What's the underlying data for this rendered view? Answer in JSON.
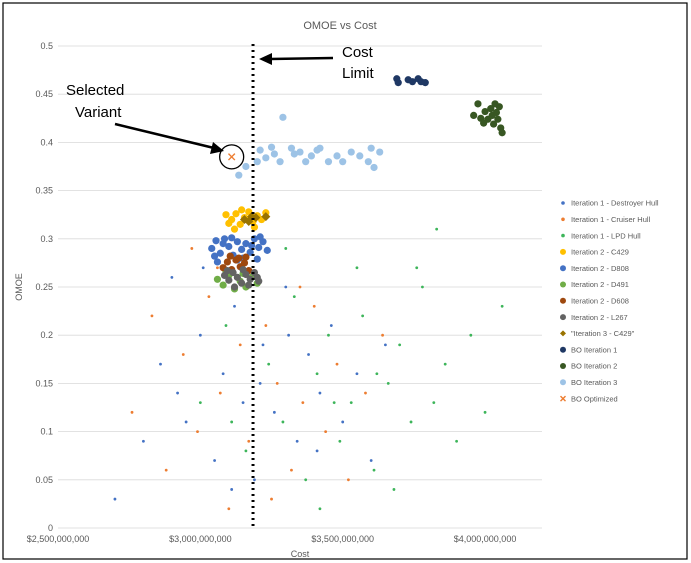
{
  "chart_data": {
    "type": "scatter",
    "title": "OMOE vs Cost",
    "xlabel": "Cost",
    "ylabel": "OMOE",
    "xlim": [
      2500000000,
      4200000000
    ],
    "ylim": [
      0,
      0.5
    ],
    "x_ticks": [
      2500000000,
      3000000000,
      3500000000,
      4000000000
    ],
    "x_tick_labels": [
      "$2,500,000,000",
      "$3,000,000,000",
      "$3,500,000,000",
      "$4,000,000,000"
    ],
    "y_ticks": [
      0,
      0.05,
      0.1,
      0.15,
      0.2,
      0.25,
      0.3,
      0.35,
      0.4,
      0.45,
      0.5
    ],
    "y_tick_labels": [
      "0",
      "0.05",
      "0.1",
      "0.15",
      "0.2",
      "0.25",
      "0.3",
      "0.35",
      "0.4",
      "0.45",
      "0.5"
    ],
    "grid": "horizontal",
    "legend_position": "right",
    "cost_limit_x": 3185000000,
    "series": [
      {
        "name": "Iteration 1 - Destroyer Hull",
        "color": "#4472C4",
        "marker": "dot",
        "points": [
          [
            2700000000,
            0.03
          ],
          [
            2800000000,
            0.09
          ],
          [
            2860000000,
            0.17
          ],
          [
            2900000000,
            0.26
          ],
          [
            2950000000,
            0.11
          ],
          [
            3000000000,
            0.2
          ],
          [
            3050000000,
            0.07
          ],
          [
            3080000000,
            0.16
          ],
          [
            3120000000,
            0.23
          ],
          [
            3150000000,
            0.13
          ],
          [
            3190000000,
            0.05
          ],
          [
            3220000000,
            0.19
          ],
          [
            3260000000,
            0.12
          ],
          [
            3300000000,
            0.25
          ],
          [
            3340000000,
            0.09
          ],
          [
            3380000000,
            0.18
          ],
          [
            3420000000,
            0.14
          ],
          [
            3460000000,
            0.21
          ],
          [
            3500000000,
            0.11
          ],
          [
            3550000000,
            0.16
          ],
          [
            3600000000,
            0.07
          ],
          [
            3650000000,
            0.19
          ],
          [
            2920000000,
            0.14
          ],
          [
            3010000000,
            0.27
          ],
          [
            3110000000,
            0.04
          ],
          [
            3210000000,
            0.15
          ],
          [
            3310000000,
            0.2
          ],
          [
            3410000000,
            0.08
          ]
        ]
      },
      {
        "name": "Iteration 1 - Cruiser Hull",
        "color": "#ED7D31",
        "marker": "dot",
        "points": [
          [
            2760000000,
            0.12
          ],
          [
            2830000000,
            0.22
          ],
          [
            2880000000,
            0.06
          ],
          [
            2940000000,
            0.18
          ],
          [
            2990000000,
            0.1
          ],
          [
            3030000000,
            0.24
          ],
          [
            3070000000,
            0.14
          ],
          [
            3100000000,
            0.02
          ],
          [
            3140000000,
            0.19
          ],
          [
            3170000000,
            0.09
          ],
          [
            3230000000,
            0.21
          ],
          [
            3270000000,
            0.15
          ],
          [
            3320000000,
            0.06
          ],
          [
            3360000000,
            0.13
          ],
          [
            3400000000,
            0.23
          ],
          [
            3440000000,
            0.1
          ],
          [
            3480000000,
            0.17
          ],
          [
            3520000000,
            0.05
          ],
          [
            3580000000,
            0.14
          ],
          [
            3640000000,
            0.2
          ],
          [
            2970000000,
            0.29
          ],
          [
            3060000000,
            0.27
          ],
          [
            3250000000,
            0.03
          ],
          [
            3350000000,
            0.25
          ]
        ]
      },
      {
        "name": "Iteration 1 - LPD Hull",
        "color": "#3DB55A",
        "marker": "dot",
        "points": [
          [
            3000000000,
            0.13
          ],
          [
            3090000000,
            0.21
          ],
          [
            3160000000,
            0.08
          ],
          [
            3240000000,
            0.17
          ],
          [
            3290000000,
            0.11
          ],
          [
            3330000000,
            0.24
          ],
          [
            3370000000,
            0.05
          ],
          [
            3410000000,
            0.16
          ],
          [
            3450000000,
            0.2
          ],
          [
            3490000000,
            0.09
          ],
          [
            3530000000,
            0.13
          ],
          [
            3570000000,
            0.22
          ],
          [
            3610000000,
            0.06
          ],
          [
            3660000000,
            0.15
          ],
          [
            3700000000,
            0.19
          ],
          [
            3740000000,
            0.11
          ],
          [
            3780000000,
            0.25
          ],
          [
            3820000000,
            0.13
          ],
          [
            3860000000,
            0.17
          ],
          [
            3900000000,
            0.09
          ],
          [
            3950000000,
            0.2
          ],
          [
            4000000000,
            0.12
          ],
          [
            4060000000,
            0.23
          ],
          [
            3300000000,
            0.29
          ],
          [
            3420000000,
            0.02
          ],
          [
            3550000000,
            0.27
          ],
          [
            3680000000,
            0.04
          ],
          [
            3760000000,
            0.27
          ],
          [
            3830000000,
            0.31
          ],
          [
            3200000000,
            0.28
          ],
          [
            3110000000,
            0.11
          ],
          [
            3470000000,
            0.13
          ],
          [
            3620000000,
            0.16
          ]
        ]
      },
      {
        "name": "Iteration 2 - C429",
        "color": "#FFC000",
        "marker": "circle",
        "points": [
          [
            3090000000,
            0.325
          ],
          [
            3110000000,
            0.32
          ],
          [
            3125000000,
            0.326
          ],
          [
            3140000000,
            0.315
          ],
          [
            3155000000,
            0.322
          ],
          [
            3170000000,
            0.328
          ],
          [
            3185000000,
            0.318
          ],
          [
            3200000000,
            0.324
          ],
          [
            3215000000,
            0.32
          ],
          [
            3230000000,
            0.327
          ],
          [
            3100000000,
            0.316
          ],
          [
            3145000000,
            0.33
          ],
          [
            3190000000,
            0.312
          ],
          [
            3120000000,
            0.31
          ]
        ]
      },
      {
        "name": "Iteration 2 - D808",
        "color": "#4472C4",
        "marker": "circle",
        "points": [
          [
            3040000000,
            0.29
          ],
          [
            3055000000,
            0.298
          ],
          [
            3070000000,
            0.285
          ],
          [
            3085000000,
            0.3
          ],
          [
            3100000000,
            0.292
          ],
          [
            3115000000,
            0.283
          ],
          [
            3130000000,
            0.297
          ],
          [
            3145000000,
            0.289
          ],
          [
            3160000000,
            0.295
          ],
          [
            3175000000,
            0.286
          ],
          [
            3190000000,
            0.3
          ],
          [
            3205000000,
            0.291
          ],
          [
            3220000000,
            0.297
          ],
          [
            3235000000,
            0.288
          ],
          [
            3050000000,
            0.282
          ],
          [
            3080000000,
            0.295
          ],
          [
            3110000000,
            0.301
          ],
          [
            3150000000,
            0.28
          ],
          [
            3180000000,
            0.293
          ],
          [
            3210000000,
            0.302
          ],
          [
            3060000000,
            0.276
          ],
          [
            3130000000,
            0.278
          ],
          [
            3200000000,
            0.279
          ]
        ]
      },
      {
        "name": "Iteration 2 - D491",
        "color": "#70AD47",
        "marker": "circle",
        "points": [
          [
            3060000000,
            0.258
          ],
          [
            3080000000,
            0.252
          ],
          [
            3100000000,
            0.262
          ],
          [
            3120000000,
            0.248
          ],
          [
            3140000000,
            0.256
          ],
          [
            3160000000,
            0.25
          ],
          [
            3180000000,
            0.26
          ],
          [
            3200000000,
            0.254
          ],
          [
            3090000000,
            0.266
          ],
          [
            3150000000,
            0.264
          ]
        ]
      },
      {
        "name": "Iteration 2 - D608",
        "color": "#9E480E",
        "marker": "circle",
        "points": [
          [
            3080000000,
            0.27
          ],
          [
            3095000000,
            0.276
          ],
          [
            3110000000,
            0.268
          ],
          [
            3125000000,
            0.278
          ],
          [
            3140000000,
            0.271
          ],
          [
            3155000000,
            0.275
          ],
          [
            3170000000,
            0.267
          ],
          [
            3105000000,
            0.282
          ],
          [
            3135000000,
            0.28
          ],
          [
            3160000000,
            0.281
          ]
        ]
      },
      {
        "name": "Iteration 2 - L267",
        "color": "#636363",
        "marker": "circle",
        "points": [
          [
            3085000000,
            0.262
          ],
          [
            3100000000,
            0.257
          ],
          [
            3115000000,
            0.265
          ],
          [
            3130000000,
            0.26
          ],
          [
            3145000000,
            0.254
          ],
          [
            3160000000,
            0.263
          ],
          [
            3175000000,
            0.258
          ],
          [
            3190000000,
            0.265
          ],
          [
            3205000000,
            0.256
          ],
          [
            3120000000,
            0.25
          ],
          [
            3170000000,
            0.252
          ],
          [
            3095000000,
            0.267
          ],
          [
            3150000000,
            0.268
          ],
          [
            3200000000,
            0.26
          ]
        ]
      },
      {
        "name": "\"Iteration 3 - C429\"",
        "color": "#997300",
        "marker": "diamond",
        "points": [
          [
            3155000000,
            0.32
          ],
          [
            3170000000,
            0.318
          ],
          [
            3180000000,
            0.323
          ],
          [
            3195000000,
            0.322
          ],
          [
            3230000000,
            0.323
          ]
        ]
      },
      {
        "name": "BO Iteration 1",
        "color": "#1F3864",
        "marker": "circle",
        "points": [
          [
            3690000000,
            0.466
          ],
          [
            3695000000,
            0.462
          ],
          [
            3730000000,
            0.465
          ],
          [
            3745000000,
            0.463
          ],
          [
            3765000000,
            0.466
          ],
          [
            3775000000,
            0.463
          ],
          [
            3790000000,
            0.462
          ]
        ]
      },
      {
        "name": "BO Iteration 2",
        "color": "#385723",
        "marker": "circle",
        "points": [
          [
            3960000000,
            0.428
          ],
          [
            3975000000,
            0.44
          ],
          [
            3985000000,
            0.425
          ],
          [
            3995000000,
            0.42
          ],
          [
            4000000000,
            0.432
          ],
          [
            4010000000,
            0.424
          ],
          [
            4020000000,
            0.435
          ],
          [
            4025000000,
            0.428
          ],
          [
            4030000000,
            0.419
          ],
          [
            4040000000,
            0.431
          ],
          [
            4045000000,
            0.424
          ],
          [
            4050000000,
            0.437
          ],
          [
            4055000000,
            0.415
          ],
          [
            4060000000,
            0.41
          ],
          [
            4035000000,
            0.44
          ]
        ]
      },
      {
        "name": "BO Iteration 3",
        "color": "#9DC3E6",
        "marker": "circle",
        "points": [
          [
            3135000000,
            0.366
          ],
          [
            3160000000,
            0.375
          ],
          [
            3200000000,
            0.38
          ],
          [
            3210000000,
            0.392
          ],
          [
            3230000000,
            0.384
          ],
          [
            3250000000,
            0.395
          ],
          [
            3260000000,
            0.388
          ],
          [
            3280000000,
            0.38
          ],
          [
            3290000000,
            0.426
          ],
          [
            3320000000,
            0.394
          ],
          [
            3330000000,
            0.388
          ],
          [
            3350000000,
            0.39
          ],
          [
            3370000000,
            0.38
          ],
          [
            3390000000,
            0.386
          ],
          [
            3410000000,
            0.392
          ],
          [
            3420000000,
            0.394
          ],
          [
            3450000000,
            0.38
          ],
          [
            3480000000,
            0.386
          ],
          [
            3500000000,
            0.38
          ],
          [
            3530000000,
            0.39
          ],
          [
            3560000000,
            0.386
          ],
          [
            3590000000,
            0.38
          ],
          [
            3600000000,
            0.394
          ],
          [
            3610000000,
            0.374
          ],
          [
            3630000000,
            0.39
          ]
        ]
      },
      {
        "name": "BO Optimized",
        "color": "#ED7D31",
        "marker": "x",
        "points": [
          [
            3110000000,
            0.385
          ]
        ]
      }
    ],
    "annotations": [
      {
        "text_lines": [
          "Cost",
          "Limit"
        ]
      },
      {
        "text_lines": [
          "Selected",
          "Variant"
        ]
      }
    ]
  }
}
